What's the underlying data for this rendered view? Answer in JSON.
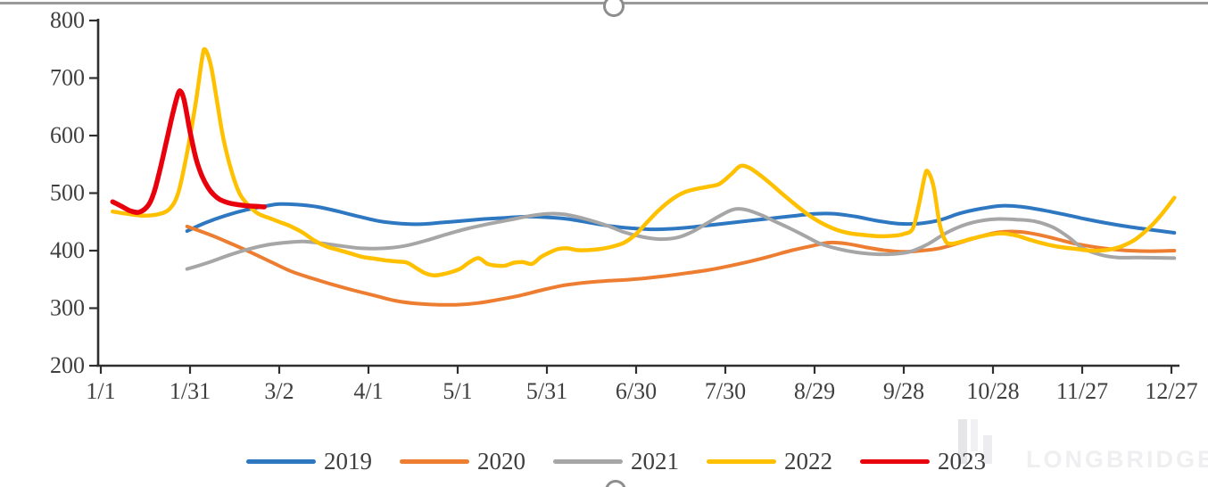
{
  "watermark": {
    "text": "LONGBRIDGE"
  },
  "chart_data": {
    "type": "line",
    "title": "",
    "xlabel": "",
    "ylabel": "",
    "grid": false,
    "legend_position": "bottom",
    "y_axis": {
      "ticks": [
        200,
        300,
        400,
        500,
        600,
        700,
        800
      ],
      "range": [
        200,
        800
      ]
    },
    "x_axis": {
      "tick_labels": [
        "1/1",
        "1/31",
        "3/2",
        "4/1",
        "5/1",
        "5/31",
        "6/30",
        "7/30",
        "8/29",
        "9/28",
        "10/28",
        "11/27",
        "12/27"
      ],
      "tick_days": [
        1,
        31,
        61,
        91,
        121,
        151,
        181,
        211,
        241,
        271,
        301,
        331,
        361
      ],
      "range_days": [
        1,
        362
      ]
    },
    "series": [
      {
        "name": "2019",
        "color": "#2E78C2",
        "width": 4,
        "points": [
          [
            30,
            434
          ],
          [
            36,
            448
          ],
          [
            43,
            461
          ],
          [
            50,
            471
          ],
          [
            57,
            478
          ],
          [
            61,
            481
          ],
          [
            67,
            480
          ],
          [
            74,
            476
          ],
          [
            81,
            468
          ],
          [
            88,
            459
          ],
          [
            95,
            451
          ],
          [
            102,
            447
          ],
          [
            109,
            446
          ],
          [
            116,
            449
          ],
          [
            123,
            452
          ],
          [
            130,
            455
          ],
          [
            137,
            457
          ],
          [
            144,
            459
          ],
          [
            151,
            458
          ],
          [
            158,
            455
          ],
          [
            165,
            449
          ],
          [
            172,
            443
          ],
          [
            179,
            439
          ],
          [
            186,
            437
          ],
          [
            193,
            438
          ],
          [
            200,
            441
          ],
          [
            207,
            445
          ],
          [
            214,
            449
          ],
          [
            221,
            453
          ],
          [
            228,
            457
          ],
          [
            235,
            461
          ],
          [
            241,
            464
          ],
          [
            248,
            464
          ],
          [
            255,
            459
          ],
          [
            262,
            452
          ],
          [
            269,
            447
          ],
          [
            276,
            447
          ],
          [
            283,
            453
          ],
          [
            290,
            465
          ],
          [
            297,
            473
          ],
          [
            304,
            478
          ],
          [
            311,
            476
          ],
          [
            318,
            470
          ],
          [
            325,
            463
          ],
          [
            332,
            455
          ],
          [
            339,
            448
          ],
          [
            346,
            442
          ],
          [
            353,
            437
          ],
          [
            362,
            431
          ]
        ]
      },
      {
        "name": "2020",
        "color": "#ED7D31",
        "width": 4,
        "points": [
          [
            30,
            442
          ],
          [
            37,
            429
          ],
          [
            44,
            414
          ],
          [
            51,
            398
          ],
          [
            58,
            381
          ],
          [
            65,
            364
          ],
          [
            72,
            352
          ],
          [
            79,
            341
          ],
          [
            86,
            331
          ],
          [
            93,
            322
          ],
          [
            100,
            313
          ],
          [
            107,
            308
          ],
          [
            114,
            306
          ],
          [
            121,
            306
          ],
          [
            128,
            309
          ],
          [
            135,
            315
          ],
          [
            142,
            322
          ],
          [
            149,
            331
          ],
          [
            156,
            339
          ],
          [
            163,
            344
          ],
          [
            170,
            347
          ],
          [
            177,
            349
          ],
          [
            184,
            352
          ],
          [
            191,
            356
          ],
          [
            198,
            361
          ],
          [
            205,
            366
          ],
          [
            212,
            373
          ],
          [
            219,
            381
          ],
          [
            226,
            390
          ],
          [
            233,
            400
          ],
          [
            240,
            408
          ],
          [
            246,
            414
          ],
          [
            252,
            412
          ],
          [
            258,
            406
          ],
          [
            264,
            401
          ],
          [
            271,
            398
          ],
          [
            277,
            400
          ],
          [
            283,
            404
          ],
          [
            290,
            414
          ],
          [
            297,
            425
          ],
          [
            303,
            432
          ],
          [
            309,
            433
          ],
          [
            315,
            429
          ],
          [
            321,
            422
          ],
          [
            327,
            414
          ],
          [
            333,
            408
          ],
          [
            340,
            403
          ],
          [
            347,
            400
          ],
          [
            354,
            399
          ],
          [
            362,
            400
          ]
        ]
      },
      {
        "name": "2021",
        "color": "#A6A6A6",
        "width": 4,
        "points": [
          [
            30,
            368
          ],
          [
            37,
            379
          ],
          [
            44,
            392
          ],
          [
            51,
            403
          ],
          [
            57,
            410
          ],
          [
            63,
            414
          ],
          [
            69,
            416
          ],
          [
            75,
            413
          ],
          [
            82,
            408
          ],
          [
            89,
            404
          ],
          [
            96,
            404
          ],
          [
            103,
            408
          ],
          [
            110,
            417
          ],
          [
            117,
            428
          ],
          [
            124,
            438
          ],
          [
            131,
            446
          ],
          [
            138,
            453
          ],
          [
            145,
            460
          ],
          [
            151,
            464
          ],
          [
            157,
            463
          ],
          [
            164,
            455
          ],
          [
            171,
            444
          ],
          [
            177,
            432
          ],
          [
            183,
            424
          ],
          [
            189,
            420
          ],
          [
            195,
            423
          ],
          [
            200,
            433
          ],
          [
            205,
            448
          ],
          [
            210,
            463
          ],
          [
            214,
            472
          ],
          [
            218,
            471
          ],
          [
            223,
            462
          ],
          [
            228,
            450
          ],
          [
            233,
            438
          ],
          [
            238,
            425
          ],
          [
            243,
            412
          ],
          [
            249,
            403
          ],
          [
            255,
            397
          ],
          [
            261,
            394
          ],
          [
            267,
            394
          ],
          [
            273,
            398
          ],
          [
            279,
            411
          ],
          [
            285,
            430
          ],
          [
            291,
            444
          ],
          [
            297,
            452
          ],
          [
            303,
            455
          ],
          [
            309,
            454
          ],
          [
            315,
            451
          ],
          [
            321,
            441
          ],
          [
            326,
            425
          ],
          [
            331,
            405
          ],
          [
            337,
            393
          ],
          [
            343,
            388
          ],
          [
            350,
            388
          ],
          [
            362,
            387
          ]
        ]
      },
      {
        "name": "2022",
        "color": "#FFC000",
        "width": 4.5,
        "points": [
          [
            5,
            468
          ],
          [
            10,
            464
          ],
          [
            15,
            461
          ],
          [
            20,
            463
          ],
          [
            24,
            472
          ],
          [
            27,
            500
          ],
          [
            30,
            570
          ],
          [
            33,
            660
          ],
          [
            35,
            732
          ],
          [
            36,
            750
          ],
          [
            38,
            722
          ],
          [
            40,
            662
          ],
          [
            42,
            600
          ],
          [
            44,
            556
          ],
          [
            46,
            521
          ],
          [
            48,
            496
          ],
          [
            51,
            477
          ],
          [
            54,
            464
          ],
          [
            58,
            456
          ],
          [
            61,
            450
          ],
          [
            65,
            442
          ],
          [
            69,
            431
          ],
          [
            73,
            417
          ],
          [
            77,
            407
          ],
          [
            81,
            401
          ],
          [
            85,
            395
          ],
          [
            89,
            389
          ],
          [
            93,
            386
          ],
          [
            97,
            383
          ],
          [
            101,
            381
          ],
          [
            104,
            379
          ],
          [
            107,
            370
          ],
          [
            110,
            361
          ],
          [
            113,
            357
          ],
          [
            116,
            359
          ],
          [
            119,
            363
          ],
          [
            122,
            369
          ],
          [
            125,
            380
          ],
          [
            128,
            387
          ],
          [
            131,
            377
          ],
          [
            134,
            374
          ],
          [
            137,
            374
          ],
          [
            140,
            379
          ],
          [
            143,
            380
          ],
          [
            146,
            377
          ],
          [
            149,
            389
          ],
          [
            152,
            397
          ],
          [
            155,
            403
          ],
          [
            158,
            404
          ],
          [
            161,
            401
          ],
          [
            165,
            401
          ],
          [
            169,
            403
          ],
          [
            173,
            407
          ],
          [
            177,
            414
          ],
          [
            181,
            429
          ],
          [
            185,
            451
          ],
          [
            189,
            472
          ],
          [
            193,
            489
          ],
          [
            197,
            501
          ],
          [
            201,
            507
          ],
          [
            205,
            511
          ],
          [
            209,
            516
          ],
          [
            213,
            533
          ],
          [
            216,
            547
          ],
          [
            219,
            544
          ],
          [
            223,
            530
          ],
          [
            227,
            513
          ],
          [
            231,
            495
          ],
          [
            235,
            478
          ],
          [
            239,
            462
          ],
          [
            243,
            449
          ],
          [
            248,
            437
          ],
          [
            253,
            430
          ],
          [
            258,
            427
          ],
          [
            263,
            425
          ],
          [
            268,
            426
          ],
          [
            271,
            429
          ],
          [
            274,
            438
          ],
          [
            276,
            478
          ],
          [
            278,
            528
          ],
          [
            279,
            538
          ],
          [
            281,
            512
          ],
          [
            283,
            448
          ],
          [
            285,
            417
          ],
          [
            287,
            412
          ],
          [
            290,
            415
          ],
          [
            294,
            421
          ],
          [
            299,
            427
          ],
          [
            304,
            430
          ],
          [
            309,
            426
          ],
          [
            314,
            418
          ],
          [
            319,
            411
          ],
          [
            324,
            406
          ],
          [
            329,
            403
          ],
          [
            334,
            400
          ],
          [
            339,
            401
          ],
          [
            344,
            407
          ],
          [
            349,
            420
          ],
          [
            354,
            442
          ],
          [
            358,
            465
          ],
          [
            362,
            492
          ]
        ]
      },
      {
        "name": "2023",
        "color": "#E8000D",
        "width": 5.5,
        "points": [
          [
            5,
            485
          ],
          [
            8,
            477
          ],
          [
            11,
            469
          ],
          [
            14,
            467
          ],
          [
            17,
            479
          ],
          [
            19,
            503
          ],
          [
            21,
            543
          ],
          [
            23,
            588
          ],
          [
            25,
            634
          ],
          [
            27,
            673
          ],
          [
            28,
            676
          ],
          [
            29,
            662
          ],
          [
            30,
            635
          ],
          [
            31,
            607
          ],
          [
            33,
            560
          ],
          [
            35,
            530
          ],
          [
            37,
            510
          ],
          [
            39,
            497
          ],
          [
            41,
            489
          ],
          [
            44,
            483
          ],
          [
            47,
            480
          ],
          [
            50,
            478
          ],
          [
            53,
            477
          ],
          [
            56,
            476
          ]
        ]
      }
    ]
  }
}
